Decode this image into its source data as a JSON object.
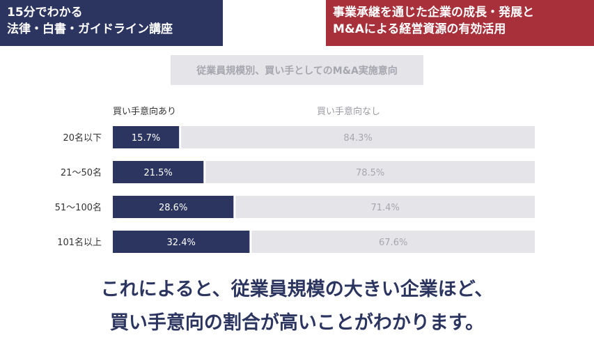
{
  "header": {
    "left_lines": [
      "15分でわかる",
      "法律・白書・ガイドライン講座"
    ],
    "right_lines": [
      "事業承継を通じた企業の成長・発展と",
      "M&Aによる経営資源の有効活用"
    ]
  },
  "colors": {
    "navy": "#2b3560",
    "red": "#a8303a",
    "bar_yes": "#2b3560",
    "bar_no": "#e5e5e9"
  },
  "chart_data": {
    "type": "bar",
    "orientation": "horizontal",
    "stacked": true,
    "title": "従業員規模別、買い手としてのM&A実施意向",
    "categories": [
      "20名以下",
      "21～50名",
      "51～100名",
      "101名以上"
    ],
    "series": [
      {
        "name": "買い手意向あり",
        "values": [
          15.7,
          21.5,
          28.6,
          32.4
        ],
        "labels": [
          "15.7%",
          "21.5%",
          "28.6%",
          "32.4%"
        ]
      },
      {
        "name": "買い手意向なし",
        "values": [
          84.3,
          78.5,
          71.4,
          67.6
        ],
        "labels": [
          "84.3%",
          "78.5%",
          "71.4%",
          "67.6%"
        ]
      }
    ],
    "xlim": [
      0,
      100
    ],
    "legend_position": "top"
  },
  "conclusion": {
    "line1": "これによると、従業員規模の大きい企業ほど、",
    "line2": "買い手意向の割合が高いことがわかります。"
  }
}
